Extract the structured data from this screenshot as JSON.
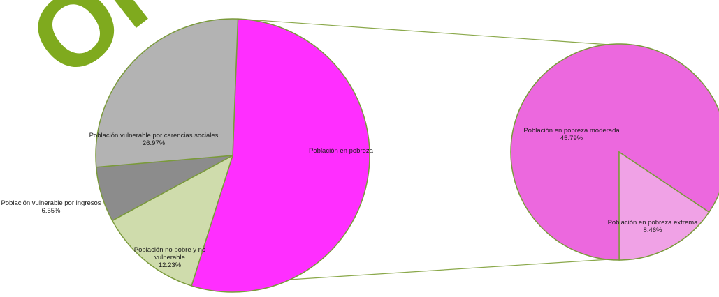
{
  "chart_data": {
    "type": "pie",
    "title": "",
    "main_pie": {
      "slices": [
        {
          "label": "Población en pobreza",
          "percent_label": "",
          "value": 54.25,
          "color": "#ff2eff"
        },
        {
          "label": "Población no pobre y no vulnerable",
          "percent_label": "12.23%",
          "value": 12.23,
          "color": "#cfdcac"
        },
        {
          "label": "Población vulnerable por ingresos",
          "percent_label": "6.55%",
          "value": 6.55,
          "color": "#8c8c8c"
        },
        {
          "label": "Población vulnerable por carencias sociales",
          "percent_label": "26.97%",
          "value": 26.97,
          "color": "#b3b3b3"
        }
      ]
    },
    "secondary_pie": {
      "slices": [
        {
          "label": "Población en pobreza moderada",
          "percent_label": "45.79%",
          "value": 45.79,
          "color": "#ec68de"
        },
        {
          "label": "Población en pobreza extrema",
          "percent_label": "8.46%",
          "value": 8.46,
          "color": "#f0a2e6"
        }
      ]
    },
    "colors": {
      "outline": "#7a9a3a",
      "connector": "#8aa84a",
      "watermark": "#7faa1e"
    }
  },
  "watermark": {
    "text": "ORA"
  }
}
